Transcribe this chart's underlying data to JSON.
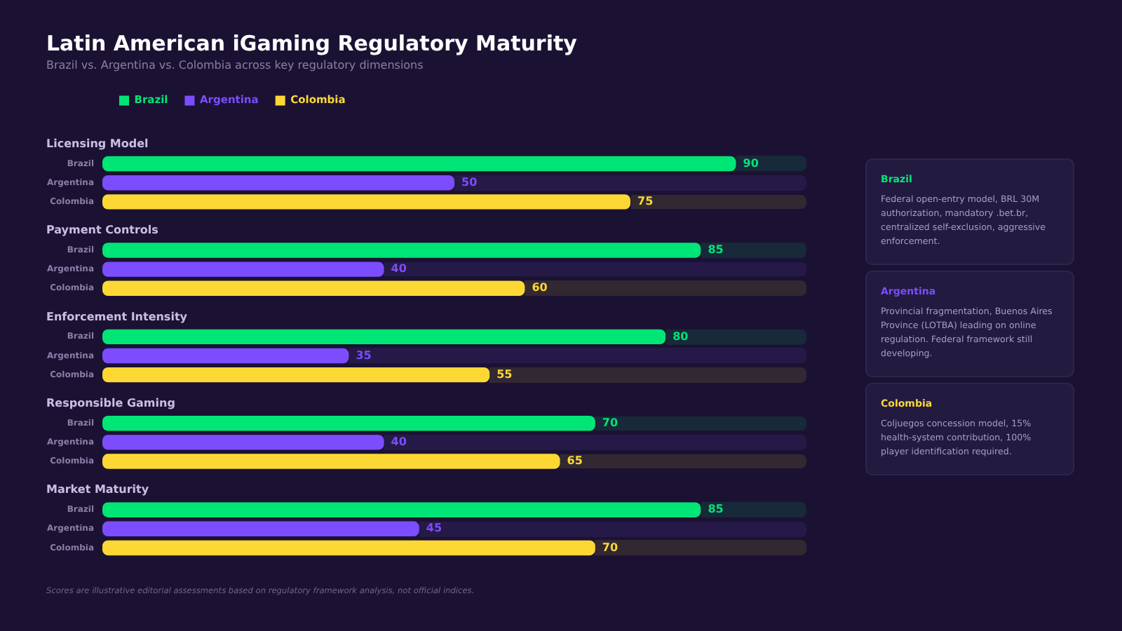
{
  "chart_data": {
    "type": "bar",
    "orientation": "horizontal",
    "title": "Latin American iGaming Regulatory Maturity",
    "subtitle": "Brazil vs. Argentina vs. Colombia across key regulatory dimensions",
    "categories": [
      "Licensing Model",
      "Payment Controls",
      "Enforcement Intensity",
      "Responsible Gaming",
      "Market Maturity"
    ],
    "series": [
      {
        "name": "Brazil",
        "color": "#00e676",
        "values": [
          90,
          85,
          80,
          70,
          85
        ]
      },
      {
        "name": "Argentina",
        "color": "#7c4dff",
        "values": [
          50,
          40,
          35,
          40,
          45
        ]
      },
      {
        "name": "Colombia",
        "color": "#fdd835",
        "values": [
          75,
          60,
          55,
          65,
          70
        ]
      }
    ],
    "xlim": [
      0,
      100
    ],
    "data_labels": true,
    "legend": "top left",
    "annotations": [
      "Federal open-entry model, BRL 30M authorization, mandatory .bet.br, centralized self-exclusion, aggressive enforcement.",
      "Provincial fragmentation, Buenos Aires Province (LOTBA) leading on online regulation. Federal framework still developing.",
      "Coljuegos concession model, 15% health-system contribution, 100% player identification required.",
      "Scores are illustrative editorial assessments based on regulatory framework analysis, not official indices."
    ]
  }
}
